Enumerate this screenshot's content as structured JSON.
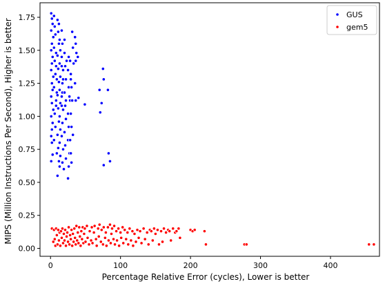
{
  "chart_data": {
    "type": "scatter",
    "title": "",
    "xlabel": "Percentage Relative Error (cycles), Lower is better",
    "ylabel": "MIPS (Million Instructions Per Second), Higher is better",
    "xlim": [
      -15,
      470
    ],
    "ylim": [
      -0.06,
      1.86
    ],
    "x_ticks": [
      0,
      100,
      200,
      300,
      400
    ],
    "y_ticks": [
      0.0,
      0.25,
      0.5,
      0.75,
      1.0,
      1.25,
      1.5,
      1.75
    ],
    "legend_position": "top-right",
    "grid": false,
    "series": [
      {
        "name": "GUS",
        "color": "#0000ff",
        "points": [
          [
            1,
            1.78
          ],
          [
            2,
            1.74
          ],
          [
            3,
            1.7
          ],
          [
            1,
            1.65
          ],
          [
            4,
            1.6
          ],
          [
            2,
            1.55
          ],
          [
            1,
            1.5
          ],
          [
            3,
            1.45
          ],
          [
            2,
            1.4
          ],
          [
            1,
            1.35
          ],
          [
            4,
            1.3
          ],
          [
            2,
            1.25
          ],
          [
            3,
            1.2
          ],
          [
            1,
            1.15
          ],
          [
            2,
            1.1
          ],
          [
            4,
            1.05
          ],
          [
            1,
            1.0
          ],
          [
            3,
            0.95
          ],
          [
            2,
            0.9
          ],
          [
            1,
            0.85
          ],
          [
            2,
            0.8
          ],
          [
            3,
            0.71
          ],
          [
            1,
            0.66
          ],
          [
            5,
            1.76
          ],
          [
            6,
            1.68
          ],
          [
            7,
            1.62
          ],
          [
            5,
            1.52
          ],
          [
            6,
            1.42
          ],
          [
            7,
            1.32
          ],
          [
            5,
            1.22
          ],
          [
            8,
            1.12
          ],
          [
            6,
            1.02
          ],
          [
            7,
            0.92
          ],
          [
            5,
            0.82
          ],
          [
            9,
            0.72
          ],
          [
            8,
            1.48
          ],
          [
            8,
            1.38
          ],
          [
            9,
            1.28
          ],
          [
            9,
            1.18
          ],
          [
            8,
            1.08
          ],
          [
            10,
            1.73
          ],
          [
            11,
            1.64
          ],
          [
            12,
            1.55
          ],
          [
            10,
            1.46
          ],
          [
            11,
            1.36
          ],
          [
            12,
            1.26
          ],
          [
            10,
            1.16
          ],
          [
            11,
            1.06
          ],
          [
            12,
            0.96
          ],
          [
            10,
            0.86
          ],
          [
            11,
            0.76
          ],
          [
            12,
            0.66
          ],
          [
            10,
            0.55
          ],
          [
            13,
            0.62
          ],
          [
            12,
            1.7
          ],
          [
            13,
            1.58
          ],
          [
            14,
            1.5
          ],
          [
            13,
            1.4
          ],
          [
            14,
            1.3
          ],
          [
            13,
            1.2
          ],
          [
            14,
            1.1
          ],
          [
            13,
            1.0
          ],
          [
            14,
            0.9
          ],
          [
            13,
            0.8
          ],
          [
            14,
            0.7
          ],
          [
            16,
            1.65
          ],
          [
            17,
            1.55
          ],
          [
            16,
            1.45
          ],
          [
            18,
            1.35
          ],
          [
            17,
            1.25
          ],
          [
            16,
            1.15
          ],
          [
            18,
            1.05
          ],
          [
            17,
            0.95
          ],
          [
            16,
            0.85
          ],
          [
            18,
            0.75
          ],
          [
            17,
            0.65
          ],
          [
            19,
            0.6
          ],
          [
            16,
            1.38
          ],
          [
            17,
            1.18
          ],
          [
            18,
            1.28
          ],
          [
            16,
            1.08
          ],
          [
            20,
            1.48
          ],
          [
            21,
            1.38
          ],
          [
            22,
            1.28
          ],
          [
            20,
            1.18
          ],
          [
            21,
            1.08
          ],
          [
            22,
            0.98
          ],
          [
            20,
            0.88
          ],
          [
            21,
            0.78
          ],
          [
            22,
            0.68
          ],
          [
            20,
            1.58
          ],
          [
            23,
            1.42
          ],
          [
            22,
            1.12
          ],
          [
            25,
            1.35
          ],
          [
            26,
            1.22
          ],
          [
            25,
            1.02
          ],
          [
            26,
            0.92
          ],
          [
            25,
            0.82
          ],
          [
            27,
            0.72
          ],
          [
            26,
            0.62
          ],
          [
            25,
            0.53
          ],
          [
            27,
            1.15
          ],
          [
            26,
            1.45
          ],
          [
            28,
            1.42
          ],
          [
            29,
            1.32
          ],
          [
            30,
            1.22
          ],
          [
            28,
            1.12
          ],
          [
            29,
            1.02
          ],
          [
            30,
            0.92
          ],
          [
            28,
            0.82
          ],
          [
            29,
            0.72
          ],
          [
            30,
            0.65
          ],
          [
            29,
            1.28
          ],
          [
            31,
            1.64
          ],
          [
            32,
            1.52
          ],
          [
            33,
            1.4
          ],
          [
            31,
            1.12
          ],
          [
            32,
            0.86
          ],
          [
            35,
            1.6
          ],
          [
            36,
            1.55
          ],
          [
            37,
            1.48
          ],
          [
            36,
            1.42
          ],
          [
            35,
            1.25
          ],
          [
            36,
            1.12
          ],
          [
            39,
            1.45
          ],
          [
            40,
            1.14
          ],
          [
            49,
            1.09
          ],
          [
            70,
            1.2
          ],
          [
            71,
            1.03
          ],
          [
            73,
            1.1
          ],
          [
            75,
            1.36
          ],
          [
            76,
            1.28
          ],
          [
            76,
            0.63
          ],
          [
            82,
            1.2
          ],
          [
            83,
            0.72
          ],
          [
            85,
            0.66
          ]
        ]
      },
      {
        "name": "gem5",
        "color": "#ff0000",
        "points": [
          [
            2,
            0.15
          ],
          [
            4,
            0.05
          ],
          [
            5,
            0.14
          ],
          [
            6,
            0.07
          ],
          [
            7,
            0.02
          ],
          [
            8,
            0.15
          ],
          [
            9,
            0.1
          ],
          [
            10,
            0.03
          ],
          [
            11,
            0.14
          ],
          [
            12,
            0.06
          ],
          [
            13,
            0.12
          ],
          [
            14,
            0.02
          ],
          [
            15,
            0.13
          ],
          [
            16,
            0.08
          ],
          [
            17,
            0.15
          ],
          [
            18,
            0.04
          ],
          [
            19,
            0.11
          ],
          [
            20,
            0.06
          ],
          [
            21,
            0.14
          ],
          [
            22,
            0.02
          ],
          [
            23,
            0.09
          ],
          [
            24,
            0.12
          ],
          [
            25,
            0.05
          ],
          [
            26,
            0.16
          ],
          [
            27,
            0.03
          ],
          [
            28,
            0.1
          ],
          [
            29,
            0.07
          ],
          [
            30,
            0.14
          ],
          [
            31,
            0.02
          ],
          [
            32,
            0.11
          ],
          [
            33,
            0.05
          ],
          [
            34,
            0.15
          ],
          [
            35,
            0.08
          ],
          [
            36,
            0.03
          ],
          [
            37,
            0.17
          ],
          [
            38,
            0.06
          ],
          [
            39,
            0.12
          ],
          [
            40,
            0.04
          ],
          [
            41,
            0.16
          ],
          [
            42,
            0.09
          ],
          [
            43,
            0.02
          ],
          [
            44,
            0.13
          ],
          [
            45,
            0.07
          ],
          [
            46,
            0.16
          ],
          [
            47,
            0.04
          ],
          [
            48,
            0.11
          ],
          [
            49,
            0.15
          ],
          [
            50,
            0.05
          ],
          [
            52,
            0.17
          ],
          [
            53,
            0.08
          ],
          [
            55,
            0.03
          ],
          [
            56,
            0.13
          ],
          [
            58,
            0.06
          ],
          [
            59,
            0.16
          ],
          [
            60,
            0.04
          ],
          [
            62,
            0.12
          ],
          [
            63,
            0.17
          ],
          [
            65,
            0.07
          ],
          [
            66,
            0.02
          ],
          [
            68,
            0.15
          ],
          [
            69,
            0.09
          ],
          [
            70,
            0.18
          ],
          [
            72,
            0.05
          ],
          [
            73,
            0.14
          ],
          [
            75,
            0.03
          ],
          [
            76,
            0.16
          ],
          [
            78,
            0.08
          ],
          [
            79,
            0.12
          ],
          [
            80,
            0.02
          ],
          [
            82,
            0.16
          ],
          [
            83,
            0.06
          ],
          [
            85,
            0.18
          ],
          [
            86,
            0.04
          ],
          [
            87,
            0.11
          ],
          [
            88,
            0.15
          ],
          [
            90,
            0.07
          ],
          [
            91,
            0.17
          ],
          [
            92,
            0.03
          ],
          [
            94,
            0.13
          ],
          [
            95,
            0.06
          ],
          [
            97,
            0.15
          ],
          [
            98,
            0.02
          ],
          [
            100,
            0.12
          ],
          [
            101,
            0.08
          ],
          [
            103,
            0.16
          ],
          [
            104,
            0.04
          ],
          [
            106,
            0.14
          ],
          [
            108,
            0.07
          ],
          [
            110,
            0.12
          ],
          [
            111,
            0.03
          ],
          [
            113,
            0.15
          ],
          [
            115,
            0.06
          ],
          [
            117,
            0.13
          ],
          [
            118,
            0.02
          ],
          [
            120,
            0.11
          ],
          [
            122,
            0.05
          ],
          [
            124,
            0.14
          ],
          [
            126,
            0.08
          ],
          [
            128,
            0.13
          ],
          [
            130,
            0.04
          ],
          [
            133,
            0.15
          ],
          [
            135,
            0.07
          ],
          [
            138,
            0.12
          ],
          [
            140,
            0.03
          ],
          [
            142,
            0.14
          ],
          [
            144,
            0.13
          ],
          [
            146,
            0.06
          ],
          [
            148,
            0.15
          ],
          [
            150,
            0.11
          ],
          [
            153,
            0.14
          ],
          [
            155,
            0.03
          ],
          [
            158,
            0.13
          ],
          [
            160,
            0.05
          ],
          [
            162,
            0.15
          ],
          [
            165,
            0.12
          ],
          [
            168,
            0.14
          ],
          [
            170,
            0.13
          ],
          [
            172,
            0.06
          ],
          [
            175,
            0.15
          ],
          [
            178,
            0.12
          ],
          [
            180,
            0.13
          ],
          [
            183,
            0.15
          ],
          [
            185,
            0.08
          ],
          [
            200,
            0.14
          ],
          [
            203,
            0.13
          ],
          [
            206,
            0.14
          ],
          [
            220,
            0.13
          ],
          [
            222,
            0.03
          ],
          [
            277,
            0.03
          ],
          [
            280,
            0.03
          ],
          [
            455,
            0.03
          ],
          [
            462,
            0.03
          ]
        ]
      }
    ]
  }
}
